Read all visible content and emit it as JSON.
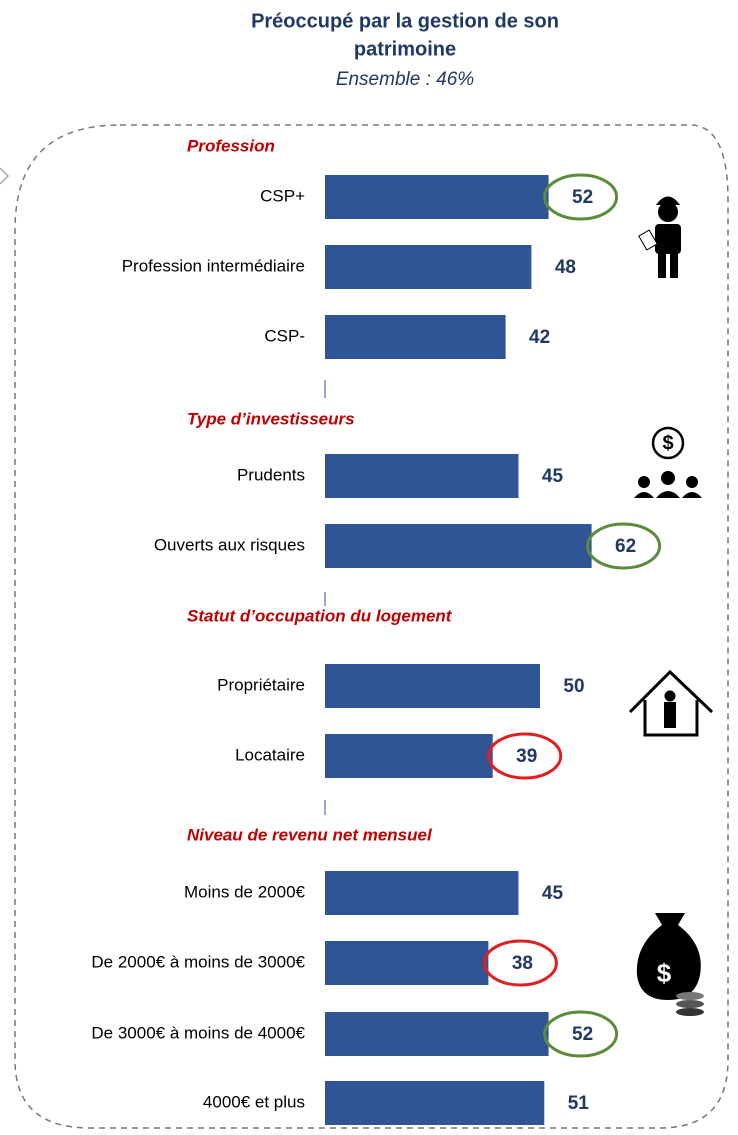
{
  "chart_data": {
    "type": "bar",
    "title": [
      "Préoccupé par la gestion de son",
      "patrimoine"
    ],
    "subtitle": "Ensemble : 46%",
    "color": "#2f5597",
    "groups": [
      {
        "name": "Profession",
        "categories": [
          "CSP+",
          "Profession intermédiaire",
          "CSP-"
        ],
        "values": [
          52,
          48,
          42
        ],
        "highlights": [
          "#5b8c3a",
          null,
          null
        ]
      },
      {
        "name": "Type d’investisseurs",
        "categories": [
          "Prudents",
          "Ouverts aux risques"
        ],
        "values": [
          45,
          62
        ],
        "highlights": [
          null,
          "#5b8c3a"
        ]
      },
      {
        "name": "Statut d’occupation du logement",
        "categories": [
          "Propriétaire",
          "Locataire"
        ],
        "values": [
          50,
          39
        ],
        "highlights": [
          null,
          "#e02020"
        ]
      },
      {
        "name": "Niveau de revenu net mensuel",
        "categories": [
          "Moins de 2000€",
          "De 2000€ à moins de 3000€",
          "De 3000€ à moins de 4000€",
          "4000€ et plus"
        ],
        "values": [
          45,
          38,
          52,
          51
        ],
        "highlights": [
          null,
          "#e02020",
          "#5b8c3a",
          null
        ]
      }
    ]
  }
}
